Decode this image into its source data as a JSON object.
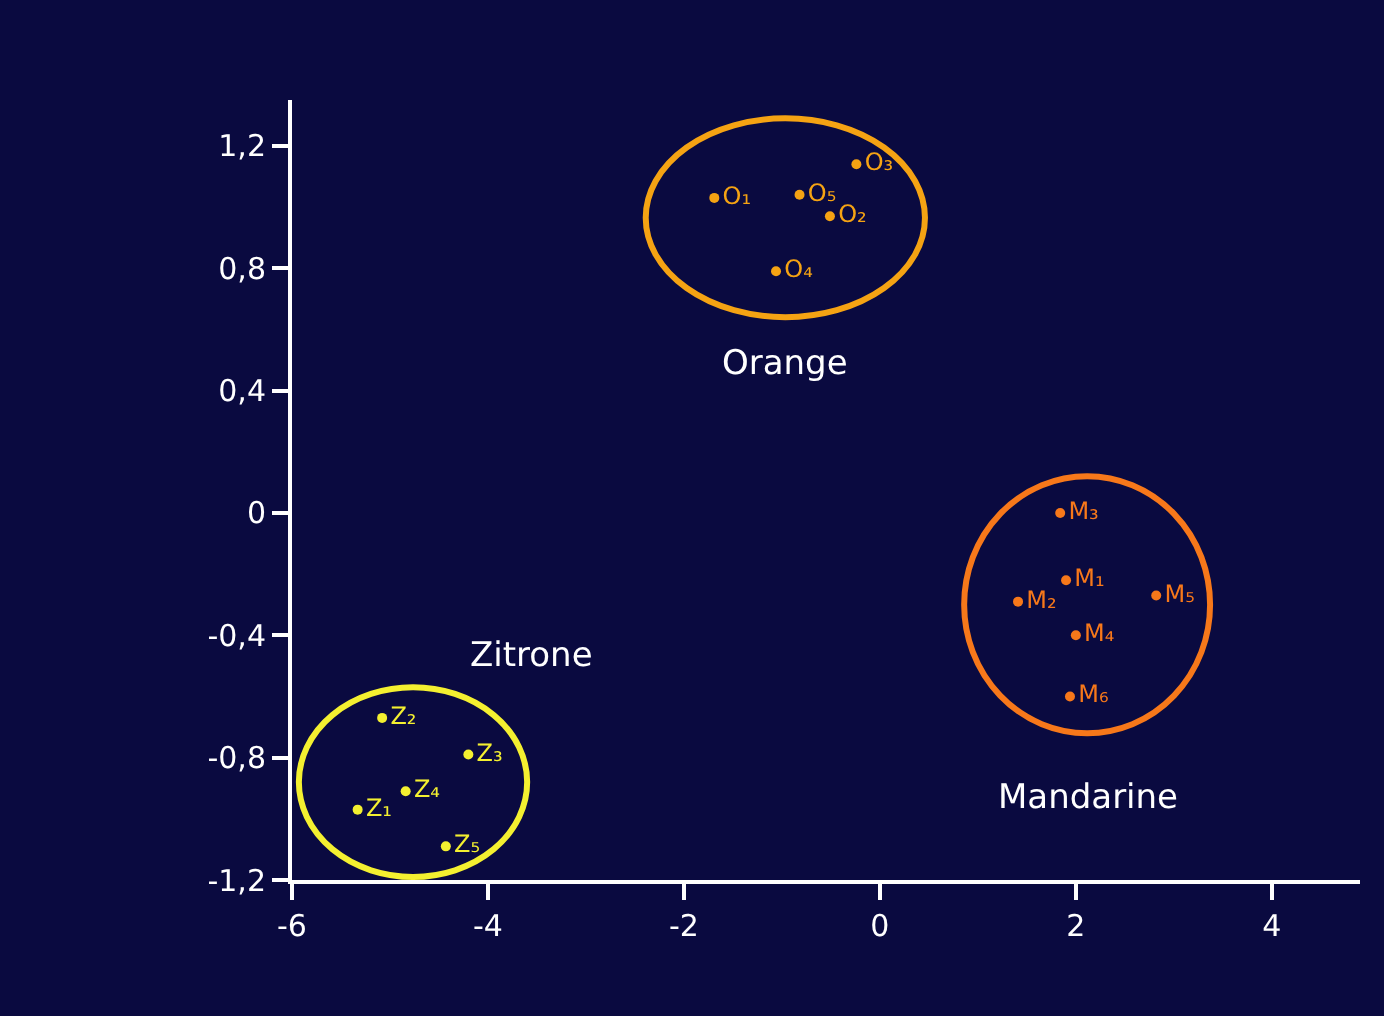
{
  "chart_data": {
    "type": "scatter",
    "xlim": [
      -6,
      4.9
    ],
    "ylim": [
      -1.2,
      1.35
    ],
    "xticks": [
      -6,
      -4,
      -2,
      0,
      2,
      4
    ],
    "yticks": [
      {
        "value": -1.2,
        "label": "-1,2"
      },
      {
        "value": -0.8,
        "label": "-0,8"
      },
      {
        "value": -0.4,
        "label": "-0,4"
      },
      0,
      {
        "value": 0.4,
        "label": "0,4"
      },
      {
        "value": 0.8,
        "label": "0,8"
      },
      {
        "value": 1.2,
        "label": "1,2"
      }
    ],
    "grid": false,
    "legend": false,
    "marker": "circle",
    "series": [
      {
        "name": "Orange",
        "color": "#f5a313",
        "x": [
          -1.69,
          -0.51,
          -0.24,
          -1.06,
          -0.82
        ],
        "values": [
          1.03,
          0.97,
          1.14,
          0.79,
          1.04
        ],
        "value_labels": [
          "O₁",
          "O₂",
          "O₃",
          "O₄",
          "O₅"
        ]
      },
      {
        "name": "Mandarine",
        "color": "#f7781a",
        "x": [
          1.9,
          1.41,
          1.84,
          2.0,
          2.82,
          1.94
        ],
        "values": [
          -0.22,
          -0.29,
          0.0,
          -0.4,
          -0.27,
          -0.6
        ],
        "value_labels": [
          "M₁",
          "M₂",
          "M₃",
          "M₄",
          "M₅",
          "M₆"
        ]
      },
      {
        "name": "Zitrone",
        "color": "#f4f030",
        "x": [
          -5.33,
          -5.08,
          -4.2,
          -4.84,
          -4.43
        ],
        "values": [
          -0.97,
          -0.67,
          -0.79,
          -0.91,
          -1.09
        ],
        "value_labels": [
          "Z₁",
          "Z₂",
          "Z₃",
          "Z₄",
          "Z₅"
        ]
      }
    ]
  }
}
